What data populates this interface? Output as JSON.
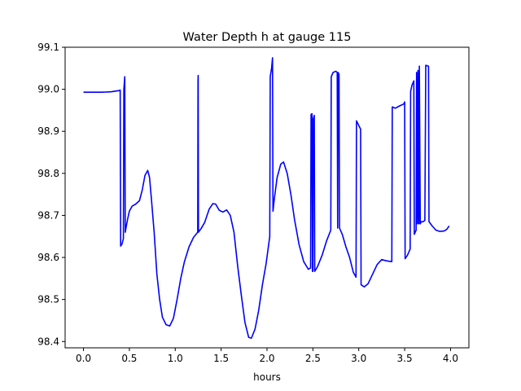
{
  "chart_data": {
    "type": "line",
    "title": "Water Depth h at gauge 115",
    "xlabel": "hours",
    "ylabel": "",
    "xlim": [
      -0.2,
      4.2
    ],
    "ylim": [
      98.385,
      99.1
    ],
    "x_ticks": [
      0.0,
      0.5,
      1.0,
      1.5,
      2.0,
      2.5,
      3.0,
      3.5,
      4.0
    ],
    "x_tick_labels": [
      "0.0",
      "0.5",
      "1.0",
      "1.5",
      "2.0",
      "2.5",
      "3.0",
      "3.5",
      "4.0"
    ],
    "y_ticks": [
      98.4,
      98.5,
      98.6,
      98.7,
      98.8,
      98.9,
      99.0,
      99.1
    ],
    "y_tick_labels": [
      "98.4",
      "98.5",
      "98.6",
      "98.7",
      "98.8",
      "98.9",
      "99.0",
      "99.1"
    ],
    "grid": false,
    "series": [
      {
        "name": "",
        "color": "#0000ff",
        "points": [
          [
            0.0,
            98.993
          ],
          [
            0.1,
            98.993
          ],
          [
            0.2,
            98.993
          ],
          [
            0.3,
            98.994
          ],
          [
            0.39,
            98.997
          ],
          [
            0.4,
            98.998
          ],
          [
            0.405,
            98.627
          ],
          [
            0.42,
            98.632
          ],
          [
            0.435,
            98.645
          ],
          [
            0.44,
            99.0
          ],
          [
            0.45,
            99.03
          ],
          [
            0.455,
            98.66
          ],
          [
            0.48,
            98.69
          ],
          [
            0.5,
            98.71
          ],
          [
            0.53,
            98.722
          ],
          [
            0.57,
            98.727
          ],
          [
            0.61,
            98.735
          ],
          [
            0.64,
            98.76
          ],
          [
            0.67,
            98.795
          ],
          [
            0.7,
            98.807
          ],
          [
            0.72,
            98.79
          ],
          [
            0.74,
            98.74
          ],
          [
            0.77,
            98.66
          ],
          [
            0.8,
            98.56
          ],
          [
            0.83,
            98.5
          ],
          [
            0.86,
            98.458
          ],
          [
            0.9,
            98.44
          ],
          [
            0.94,
            98.437
          ],
          [
            0.98,
            98.455
          ],
          [
            1.02,
            98.5
          ],
          [
            1.06,
            98.55
          ],
          [
            1.1,
            98.59
          ],
          [
            1.15,
            98.625
          ],
          [
            1.2,
            98.648
          ],
          [
            1.245,
            98.66
          ],
          [
            1.248,
            99.02
          ],
          [
            1.25,
            99.033
          ],
          [
            1.253,
            98.66
          ],
          [
            1.28,
            98.668
          ],
          [
            1.32,
            98.683
          ],
          [
            1.37,
            98.715
          ],
          [
            1.41,
            98.728
          ],
          [
            1.44,
            98.727
          ],
          [
            1.48,
            98.712
          ],
          [
            1.52,
            98.708
          ],
          [
            1.56,
            98.713
          ],
          [
            1.6,
            98.7
          ],
          [
            1.64,
            98.66
          ],
          [
            1.68,
            98.58
          ],
          [
            1.72,
            98.51
          ],
          [
            1.76,
            98.445
          ],
          [
            1.8,
            98.41
          ],
          [
            1.83,
            98.408
          ],
          [
            1.87,
            98.43
          ],
          [
            1.91,
            98.475
          ],
          [
            1.95,
            98.535
          ],
          [
            1.99,
            98.585
          ],
          [
            2.03,
            98.65
          ],
          [
            2.035,
            99.03
          ],
          [
            2.05,
            99.05
          ],
          [
            2.06,
            99.075
          ],
          [
            2.065,
            98.71
          ],
          [
            2.08,
            98.74
          ],
          [
            2.11,
            98.79
          ],
          [
            2.15,
            98.822
          ],
          [
            2.18,
            98.827
          ],
          [
            2.22,
            98.8
          ],
          [
            2.26,
            98.75
          ],
          [
            2.3,
            98.69
          ],
          [
            2.35,
            98.63
          ],
          [
            2.4,
            98.59
          ],
          [
            2.45,
            98.572
          ],
          [
            2.475,
            98.575
          ],
          [
            2.48,
            98.94
          ],
          [
            2.49,
            98.942
          ],
          [
            2.495,
            98.567
          ],
          [
            2.5,
            98.567
          ],
          [
            2.505,
            98.93
          ],
          [
            2.515,
            98.938
          ],
          [
            2.52,
            98.567
          ],
          [
            2.55,
            98.578
          ],
          [
            2.6,
            98.605
          ],
          [
            2.65,
            98.64
          ],
          [
            2.695,
            98.665
          ],
          [
            2.7,
            99.03
          ],
          [
            2.72,
            99.04
          ],
          [
            2.75,
            99.043
          ],
          [
            2.765,
            99.04
          ],
          [
            2.77,
            98.67
          ],
          [
            2.775,
            99.04
          ],
          [
            2.785,
            99.035
          ],
          [
            2.79,
            98.67
          ],
          [
            2.82,
            98.655
          ],
          [
            2.86,
            98.625
          ],
          [
            2.9,
            98.6
          ],
          [
            2.94,
            98.565
          ],
          [
            2.97,
            98.553
          ],
          [
            2.975,
            98.925
          ],
          [
            3.02,
            98.905
          ],
          [
            3.025,
            98.535
          ],
          [
            3.06,
            98.53
          ],
          [
            3.1,
            98.537
          ],
          [
            3.15,
            98.56
          ],
          [
            3.2,
            98.583
          ],
          [
            3.25,
            98.595
          ],
          [
            3.3,
            98.592
          ],
          [
            3.36,
            98.59
          ],
          [
            3.365,
            98.958
          ],
          [
            3.4,
            98.955
          ],
          [
            3.44,
            98.96
          ],
          [
            3.49,
            98.965
          ],
          [
            3.5,
            98.97
          ],
          [
            3.505,
            98.597
          ],
          [
            3.53,
            98.605
          ],
          [
            3.56,
            98.62
          ],
          [
            3.565,
            98.995
          ],
          [
            3.58,
            99.01
          ],
          [
            3.6,
            99.02
          ],
          [
            3.605,
            98.655
          ],
          [
            3.625,
            98.665
          ],
          [
            3.63,
            99.04
          ],
          [
            3.64,
            98.68
          ],
          [
            3.645,
            99.045
          ],
          [
            3.655,
            98.68
          ],
          [
            3.66,
            99.055
          ],
          [
            3.67,
            98.68
          ],
          [
            3.68,
            98.685
          ],
          [
            3.7,
            98.685
          ],
          [
            3.72,
            98.688
          ],
          [
            3.73,
            99.057
          ],
          [
            3.76,
            99.055
          ],
          [
            3.765,
            98.685
          ],
          [
            3.8,
            98.675
          ],
          [
            3.84,
            98.665
          ],
          [
            3.88,
            98.662
          ],
          [
            3.93,
            98.663
          ],
          [
            3.96,
            98.667
          ],
          [
            3.985,
            98.675
          ]
        ]
      }
    ]
  }
}
